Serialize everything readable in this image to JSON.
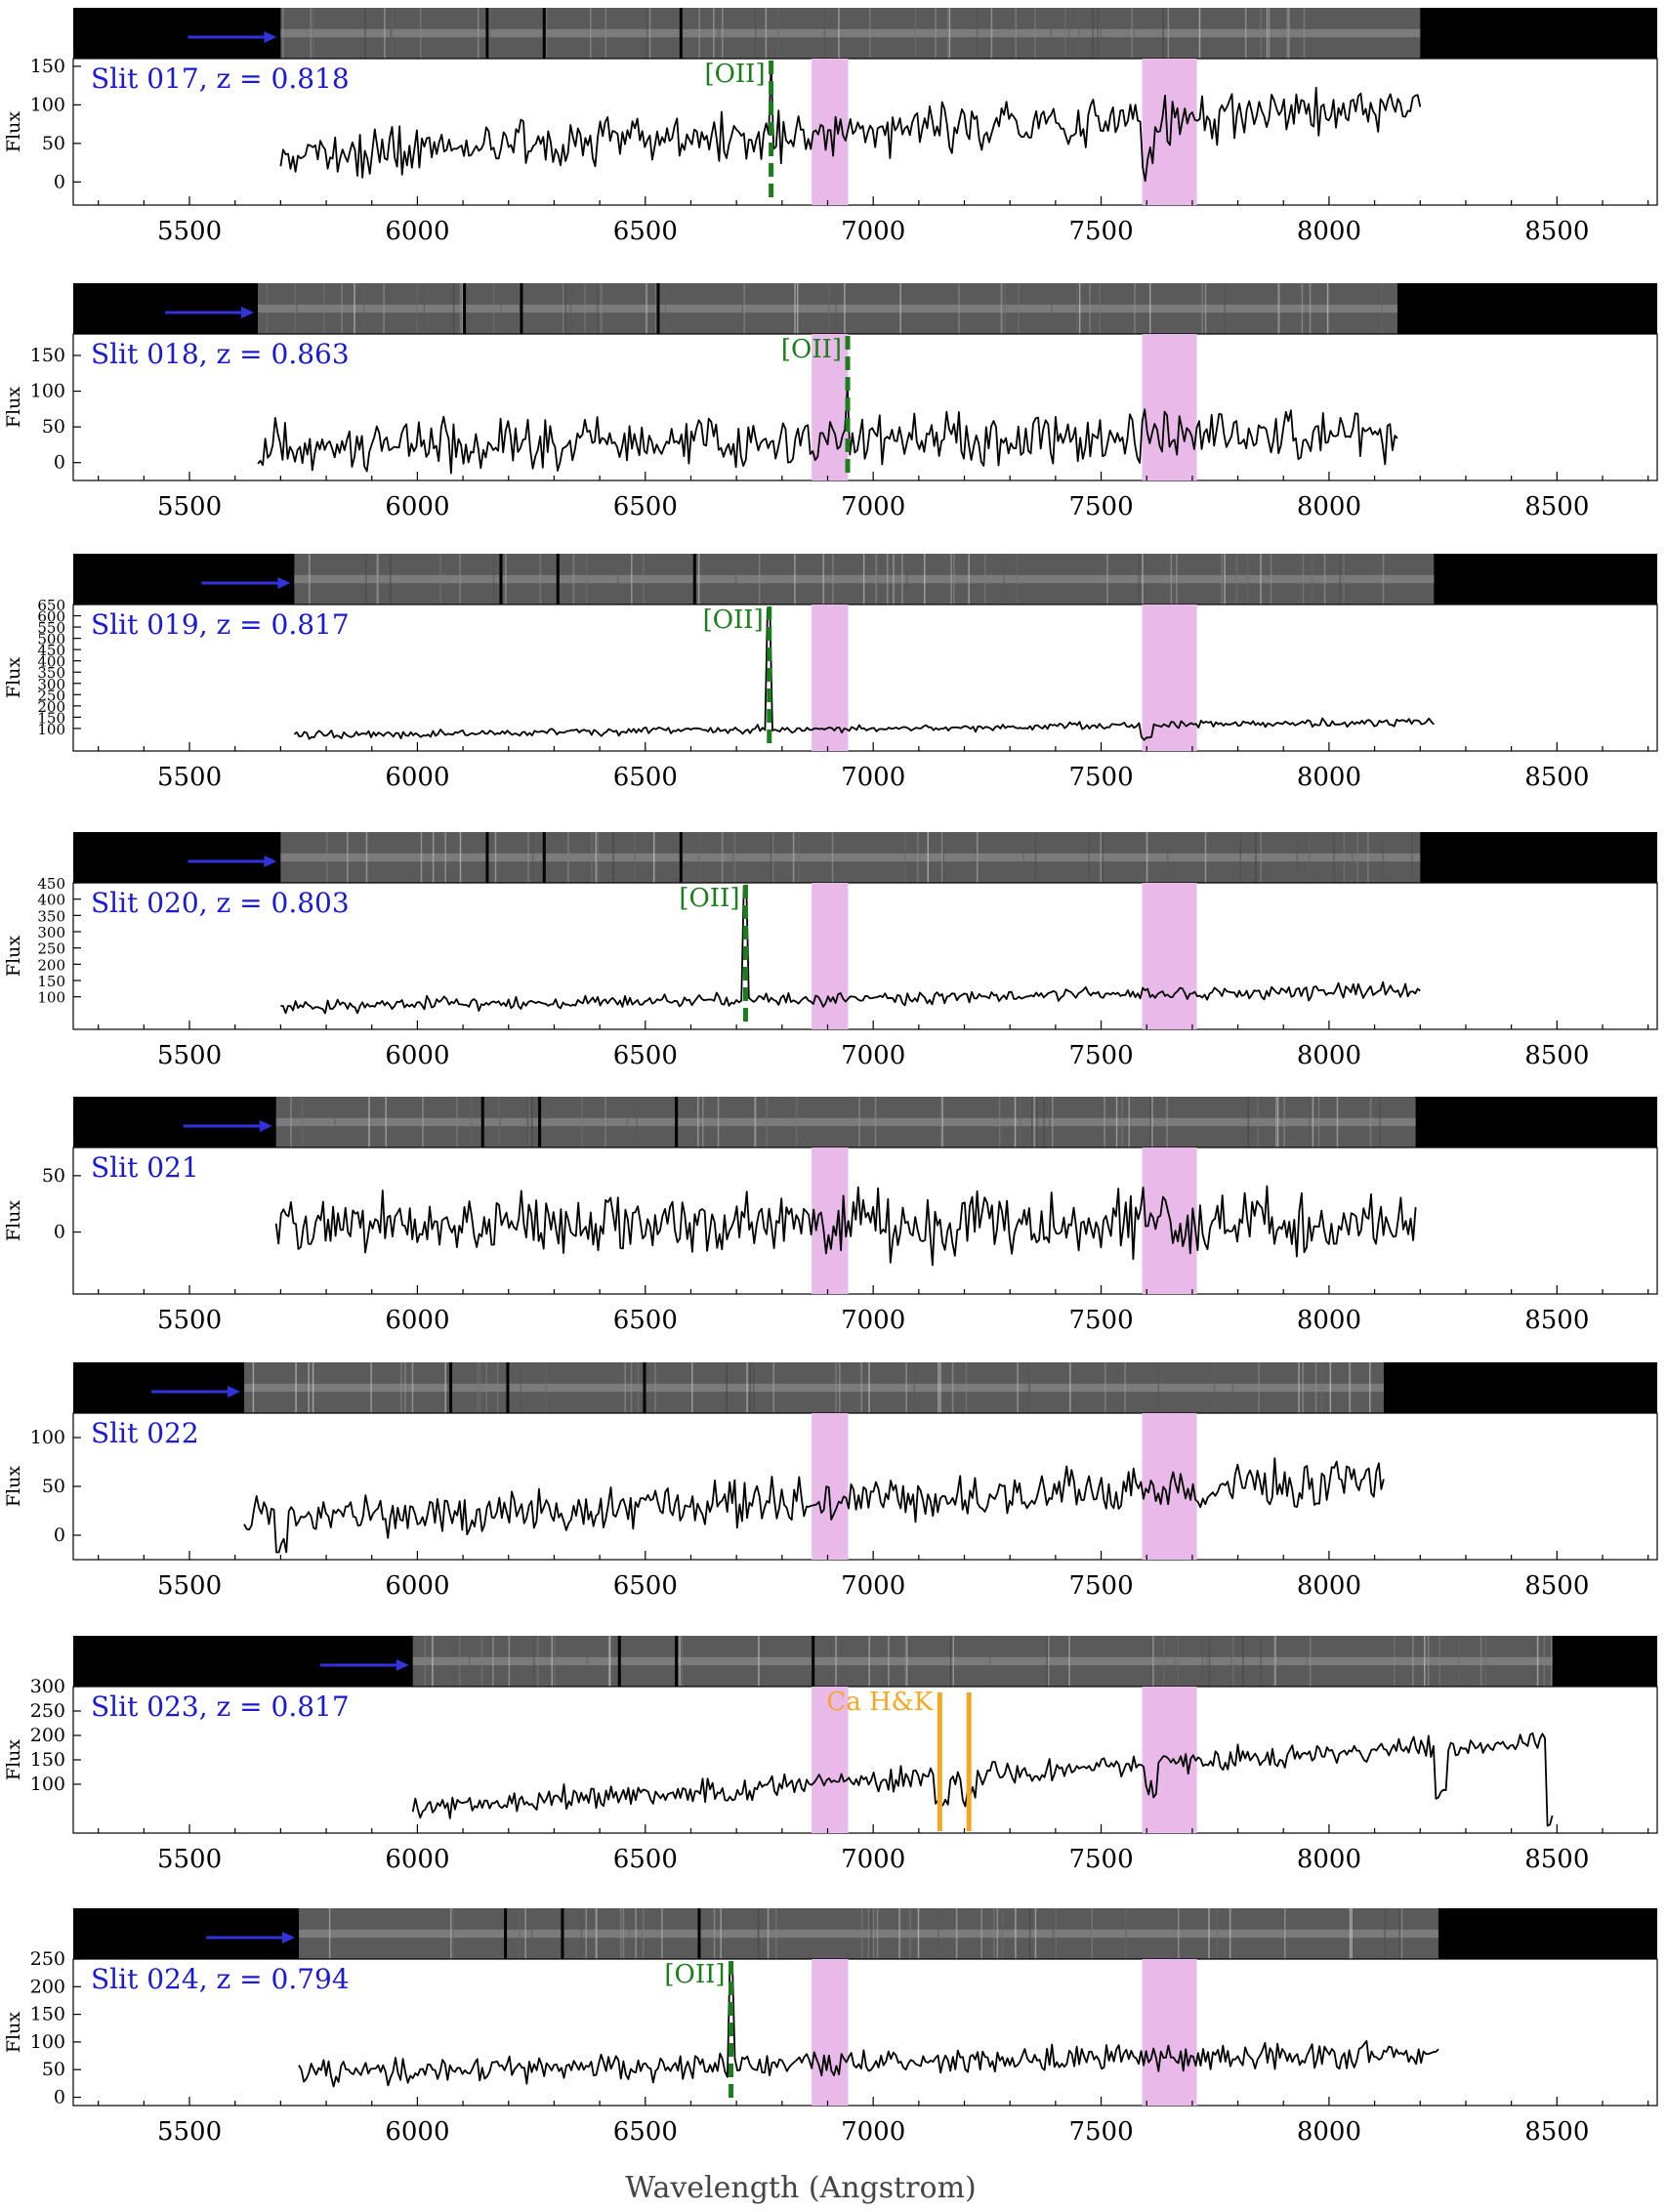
{
  "figure": {
    "xlabel": "Wavelength (Angstrom)",
    "ylabel": "Flux",
    "colors": {
      "spectrum": "#000000",
      "oii": "#1a7f1a",
      "cahk": "#f5a623",
      "label": "#1a1ad6",
      "arrow": "#3333dd",
      "telluric": "#e9b9e9"
    },
    "xticks": [
      5500,
      6000,
      6500,
      7000,
      7500,
      8000,
      8500
    ],
    "telluric_bands": [
      [
        6865,
        6945
      ],
      [
        7590,
        7710
      ]
    ]
  },
  "chart_data": [
    {
      "type": "line",
      "label": "Slit 017",
      "z": "0.818",
      "xrange": [
        5700,
        8200
      ],
      "ylim": [
        -30,
        160
      ],
      "yticks": [
        0,
        50,
        100,
        150
      ],
      "base": 35,
      "trend": 60,
      "noise": 22,
      "seed": 17,
      "features": [
        {
          "type": "line",
          "name": "[OII]",
          "x": 6776,
          "y": 155,
          "color": "oii"
        }
      ],
      "absorptions": [
        [
          7600,
          50
        ]
      ]
    },
    {
      "type": "line",
      "label": "Slit 018",
      "z": "0.863",
      "xrange": [
        5650,
        8150
      ],
      "ylim": [
        -25,
        180
      ],
      "yticks": [
        0,
        50,
        100,
        150
      ],
      "base": 20,
      "trend": 25,
      "noise": 25,
      "seed": 18,
      "features": [
        {
          "type": "line",
          "name": "[OII]",
          "x": 6944,
          "y": 108,
          "color": "oii"
        }
      ],
      "absorptions": []
    },
    {
      "type": "line",
      "label": "Slit 019",
      "z": "0.817",
      "xrange": [
        5730,
        8230
      ],
      "ylim": [
        0,
        650
      ],
      "yticks": [
        100,
        150,
        200,
        250,
        300,
        350,
        400,
        450,
        500,
        550,
        600,
        650
      ],
      "base": 70,
      "trend": 60,
      "noise": 12,
      "seed": 19,
      "features": [
        {
          "type": "line",
          "name": "[OII]",
          "x": 6772,
          "y": 630,
          "color": "oii"
        }
      ],
      "absorptions": [
        [
          7600,
          60
        ]
      ]
    },
    {
      "type": "line",
      "label": "Slit 020",
      "z": "0.803",
      "xrange": [
        5700,
        8200
      ],
      "ylim": [
        0,
        450
      ],
      "yticks": [
        100,
        150,
        200,
        250,
        300,
        350,
        400,
        450
      ],
      "base": 70,
      "trend": 50,
      "noise": 14,
      "seed": 20,
      "features": [
        {
          "type": "line",
          "name": "[OII]",
          "x": 6720,
          "y": 440,
          "color": "oii"
        }
      ],
      "absorptions": []
    },
    {
      "type": "line",
      "label": "Slit 021",
      "z": "",
      "xrange": [
        5690,
        8190
      ],
      "ylim": [
        -55,
        75
      ],
      "yticks": [
        0,
        50
      ],
      "base": 8,
      "trend": 0,
      "noise": 20,
      "seed": 21,
      "features": [],
      "absorptions": []
    },
    {
      "type": "line",
      "label": "Slit 022",
      "z": "",
      "xrange": [
        5620,
        8120
      ],
      "ylim": [
        -25,
        125
      ],
      "yticks": [
        0,
        50,
        100
      ],
      "base": 15,
      "trend": 40,
      "noise": 17,
      "seed": 22,
      "features": [],
      "absorptions": [
        [
          5700,
          30
        ]
      ]
    },
    {
      "type": "line",
      "label": "Slit 023",
      "z": "0.817",
      "xrange": [
        5990,
        8490
      ],
      "ylim": [
        0,
        300
      ],
      "yticks": [
        100,
        150,
        200,
        250,
        300
      ],
      "base": 50,
      "trend": 140,
      "noise": 16,
      "seed": 23,
      "features": [
        {
          "type": "pair",
          "name": "Ca H&K",
          "x": [
            7146,
            7210
          ],
          "y": 300,
          "color": "cahk"
        }
      ],
      "absorptions": [
        [
          7150,
          55
        ],
        [
          7210,
          50
        ],
        [
          7610,
          60
        ],
        [
          8245,
          90
        ],
        [
          8490,
          170
        ]
      ]
    },
    {
      "type": "line",
      "label": "Slit 024",
      "z": "0.794",
      "xrange": [
        5740,
        8240
      ],
      "ylim": [
        -15,
        250
      ],
      "yticks": [
        0,
        50,
        100,
        150,
        200,
        250
      ],
      "base": 45,
      "trend": 35,
      "noise": 16,
      "seed": 24,
      "features": [
        {
          "type": "line",
          "name": "[OII]",
          "x": 6688,
          "y": 240,
          "color": "oii"
        }
      ],
      "absorptions": []
    }
  ]
}
